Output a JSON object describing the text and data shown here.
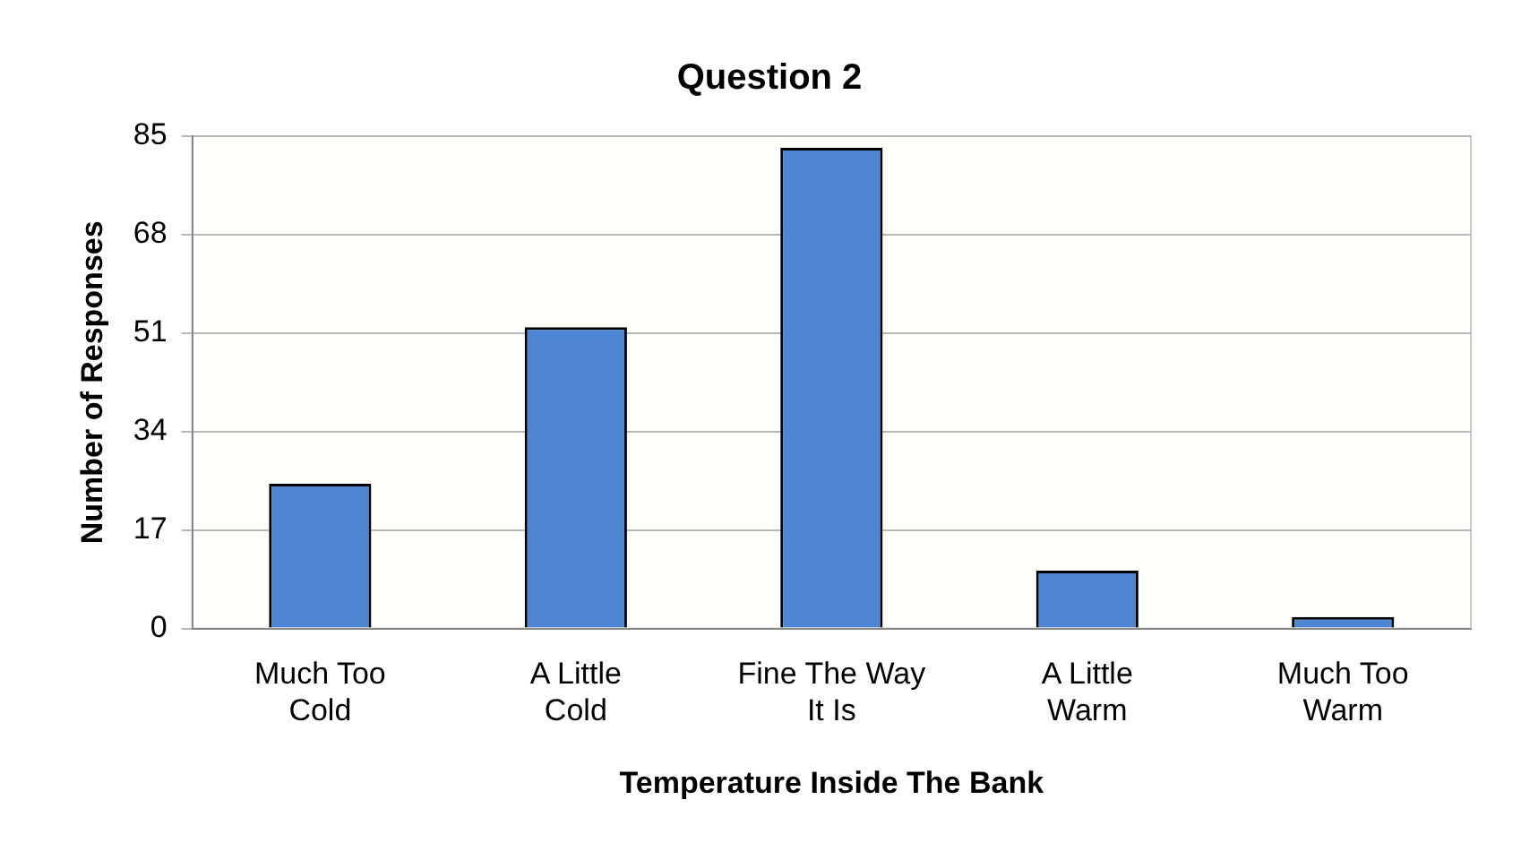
{
  "chart_data": {
    "type": "bar",
    "title": "Question 2",
    "xlabel": "Temperature Inside The Bank",
    "ylabel": "Number of Responses",
    "categories": [
      "Much Too Cold",
      "A Little Cold",
      "Fine The Way It Is",
      "A Little Warm",
      "Much Too Warm"
    ],
    "values": [
      25,
      52,
      83,
      10,
      2
    ],
    "color": "#4f86d4",
    "ylim": [
      0,
      85
    ],
    "yticks": [
      0,
      17,
      34,
      51,
      68,
      85
    ],
    "grid": "y",
    "legend": false
  }
}
